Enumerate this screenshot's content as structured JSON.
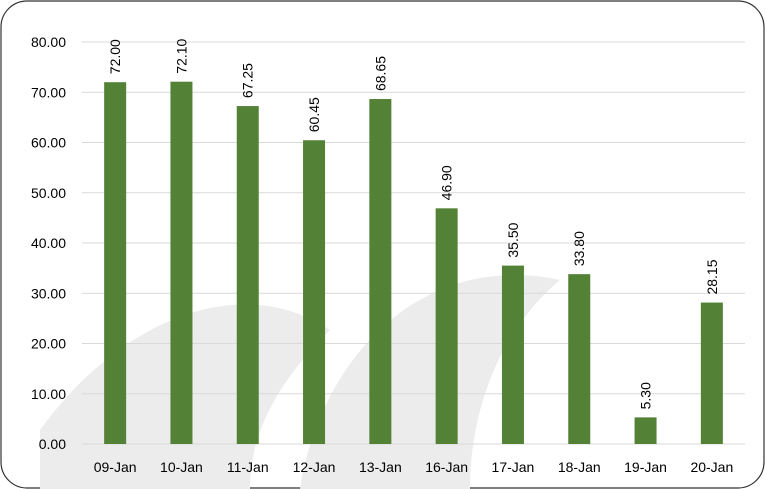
{
  "chart_data": {
    "type": "bar",
    "title": "",
    "xlabel": "",
    "ylabel": "",
    "categories": [
      "09-Jan",
      "10-Jan",
      "11-Jan",
      "12-Jan",
      "13-Jan",
      "16-Jan",
      "17-Jan",
      "18-Jan",
      "19-Jan",
      "20-Jan"
    ],
    "values": [
      72.0,
      72.1,
      67.25,
      60.45,
      68.65,
      46.9,
      35.5,
      33.8,
      5.3,
      28.15
    ],
    "data_labels": [
      "72.00",
      "72.10",
      "67.25",
      "60.45",
      "68.65",
      "46.90",
      "35.50",
      "33.80",
      "5.30",
      "28.15"
    ],
    "ylim": [
      0,
      80
    ],
    "yticks": [
      "0.00",
      "10.00",
      "20.00",
      "30.00",
      "40.00",
      "50.00",
      "60.00",
      "70.00",
      "80.00"
    ],
    "grid": true,
    "legend": "none",
    "colors": {
      "bar": "#538135",
      "grid": "#d9d9d9",
      "frame": "#333333"
    }
  }
}
